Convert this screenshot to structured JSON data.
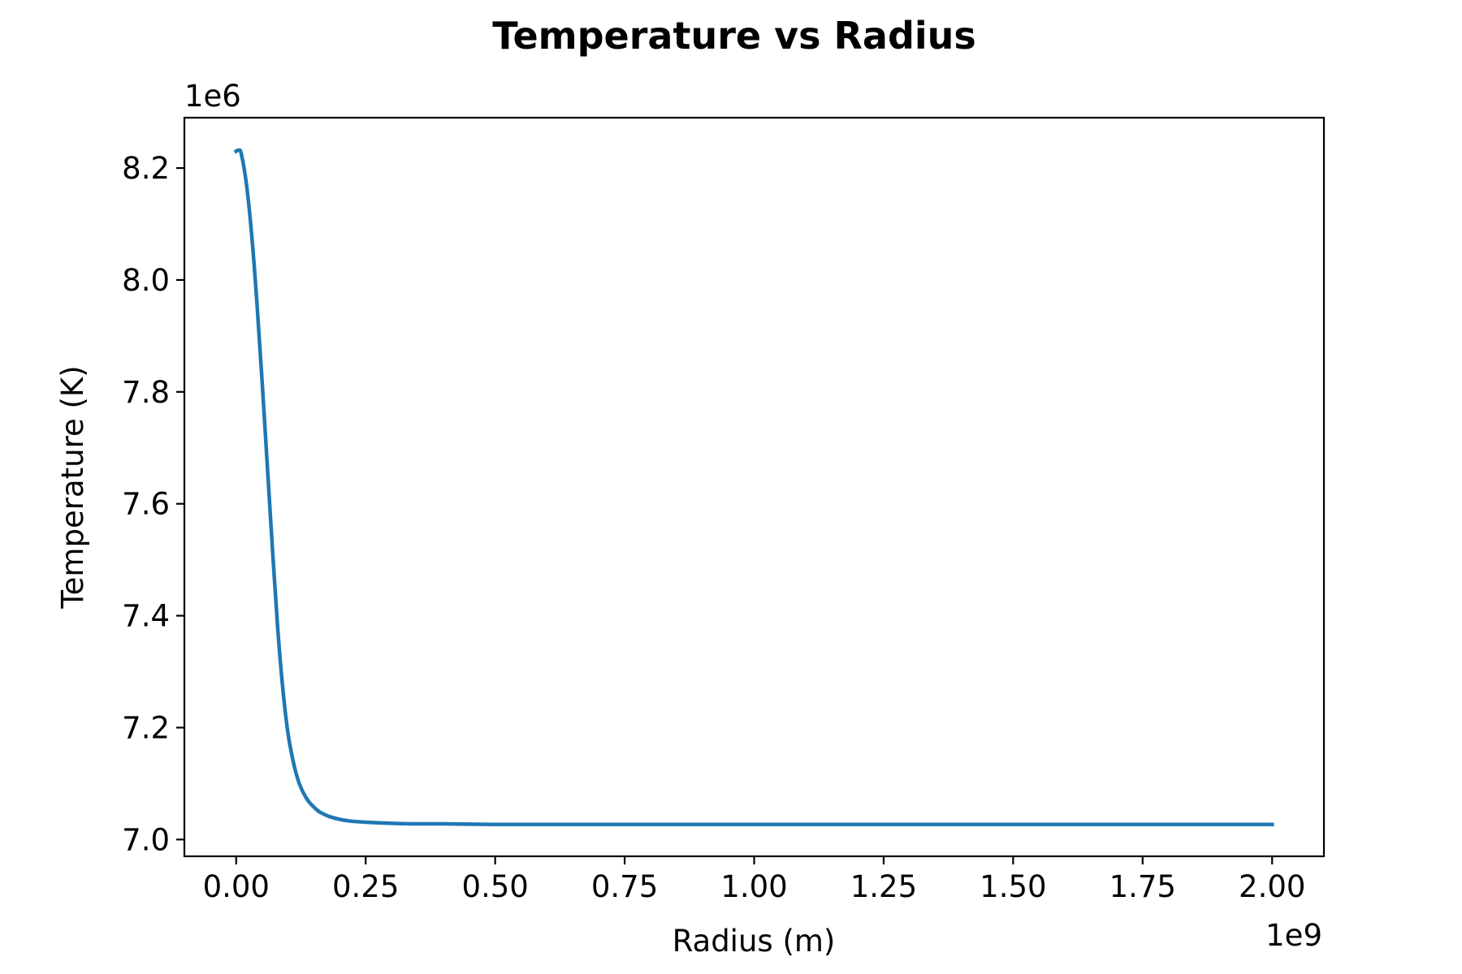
{
  "chart_data": {
    "type": "line",
    "title": "Temperature vs Radius",
    "xlabel": "Radius (m)",
    "ylabel": "Temperature (K)",
    "x_offset_label": "1e9",
    "y_offset_label": "1e6",
    "xlim": [
      -0.1,
      2.1
    ],
    "ylim": [
      6.97,
      8.29
    ],
    "x_ticks": [
      0.0,
      0.25,
      0.5,
      0.75,
      1.0,
      1.25,
      1.5,
      1.75,
      2.0
    ],
    "x_tick_labels": [
      "0.00",
      "0.25",
      "0.50",
      "0.75",
      "1.00",
      "1.25",
      "1.50",
      "1.75",
      "2.00"
    ],
    "y_ticks": [
      7.0,
      7.2,
      7.4,
      7.6,
      7.8,
      8.0,
      8.2
    ],
    "y_tick_labels": [
      "7.0",
      "7.2",
      "7.4",
      "7.6",
      "7.8",
      "8.0",
      "8.2"
    ],
    "grid": false,
    "legend": "none",
    "series": [
      {
        "color": "#1f77b4",
        "x": [
          0.0,
          0.005,
          0.01,
          0.02,
          0.03,
          0.04,
          0.05,
          0.06,
          0.07,
          0.08,
          0.09,
          0.1,
          0.11,
          0.12,
          0.13,
          0.14,
          0.15,
          0.16,
          0.17,
          0.18,
          0.2,
          0.22,
          0.25,
          0.3,
          0.35,
          0.4,
          0.5,
          0.6,
          0.75,
          1.0,
          1.25,
          1.5,
          1.75,
          2.0
        ],
        "y": [
          8.23,
          8.232,
          8.225,
          8.17,
          8.08,
          7.96,
          7.82,
          7.67,
          7.52,
          7.38,
          7.27,
          7.19,
          7.14,
          7.105,
          7.083,
          7.068,
          7.058,
          7.05,
          7.045,
          7.041,
          7.036,
          7.033,
          7.031,
          7.029,
          7.028,
          7.028,
          7.027,
          7.027,
          7.027,
          7.027,
          7.027,
          7.027,
          7.027,
          7.027
        ]
      }
    ]
  }
}
